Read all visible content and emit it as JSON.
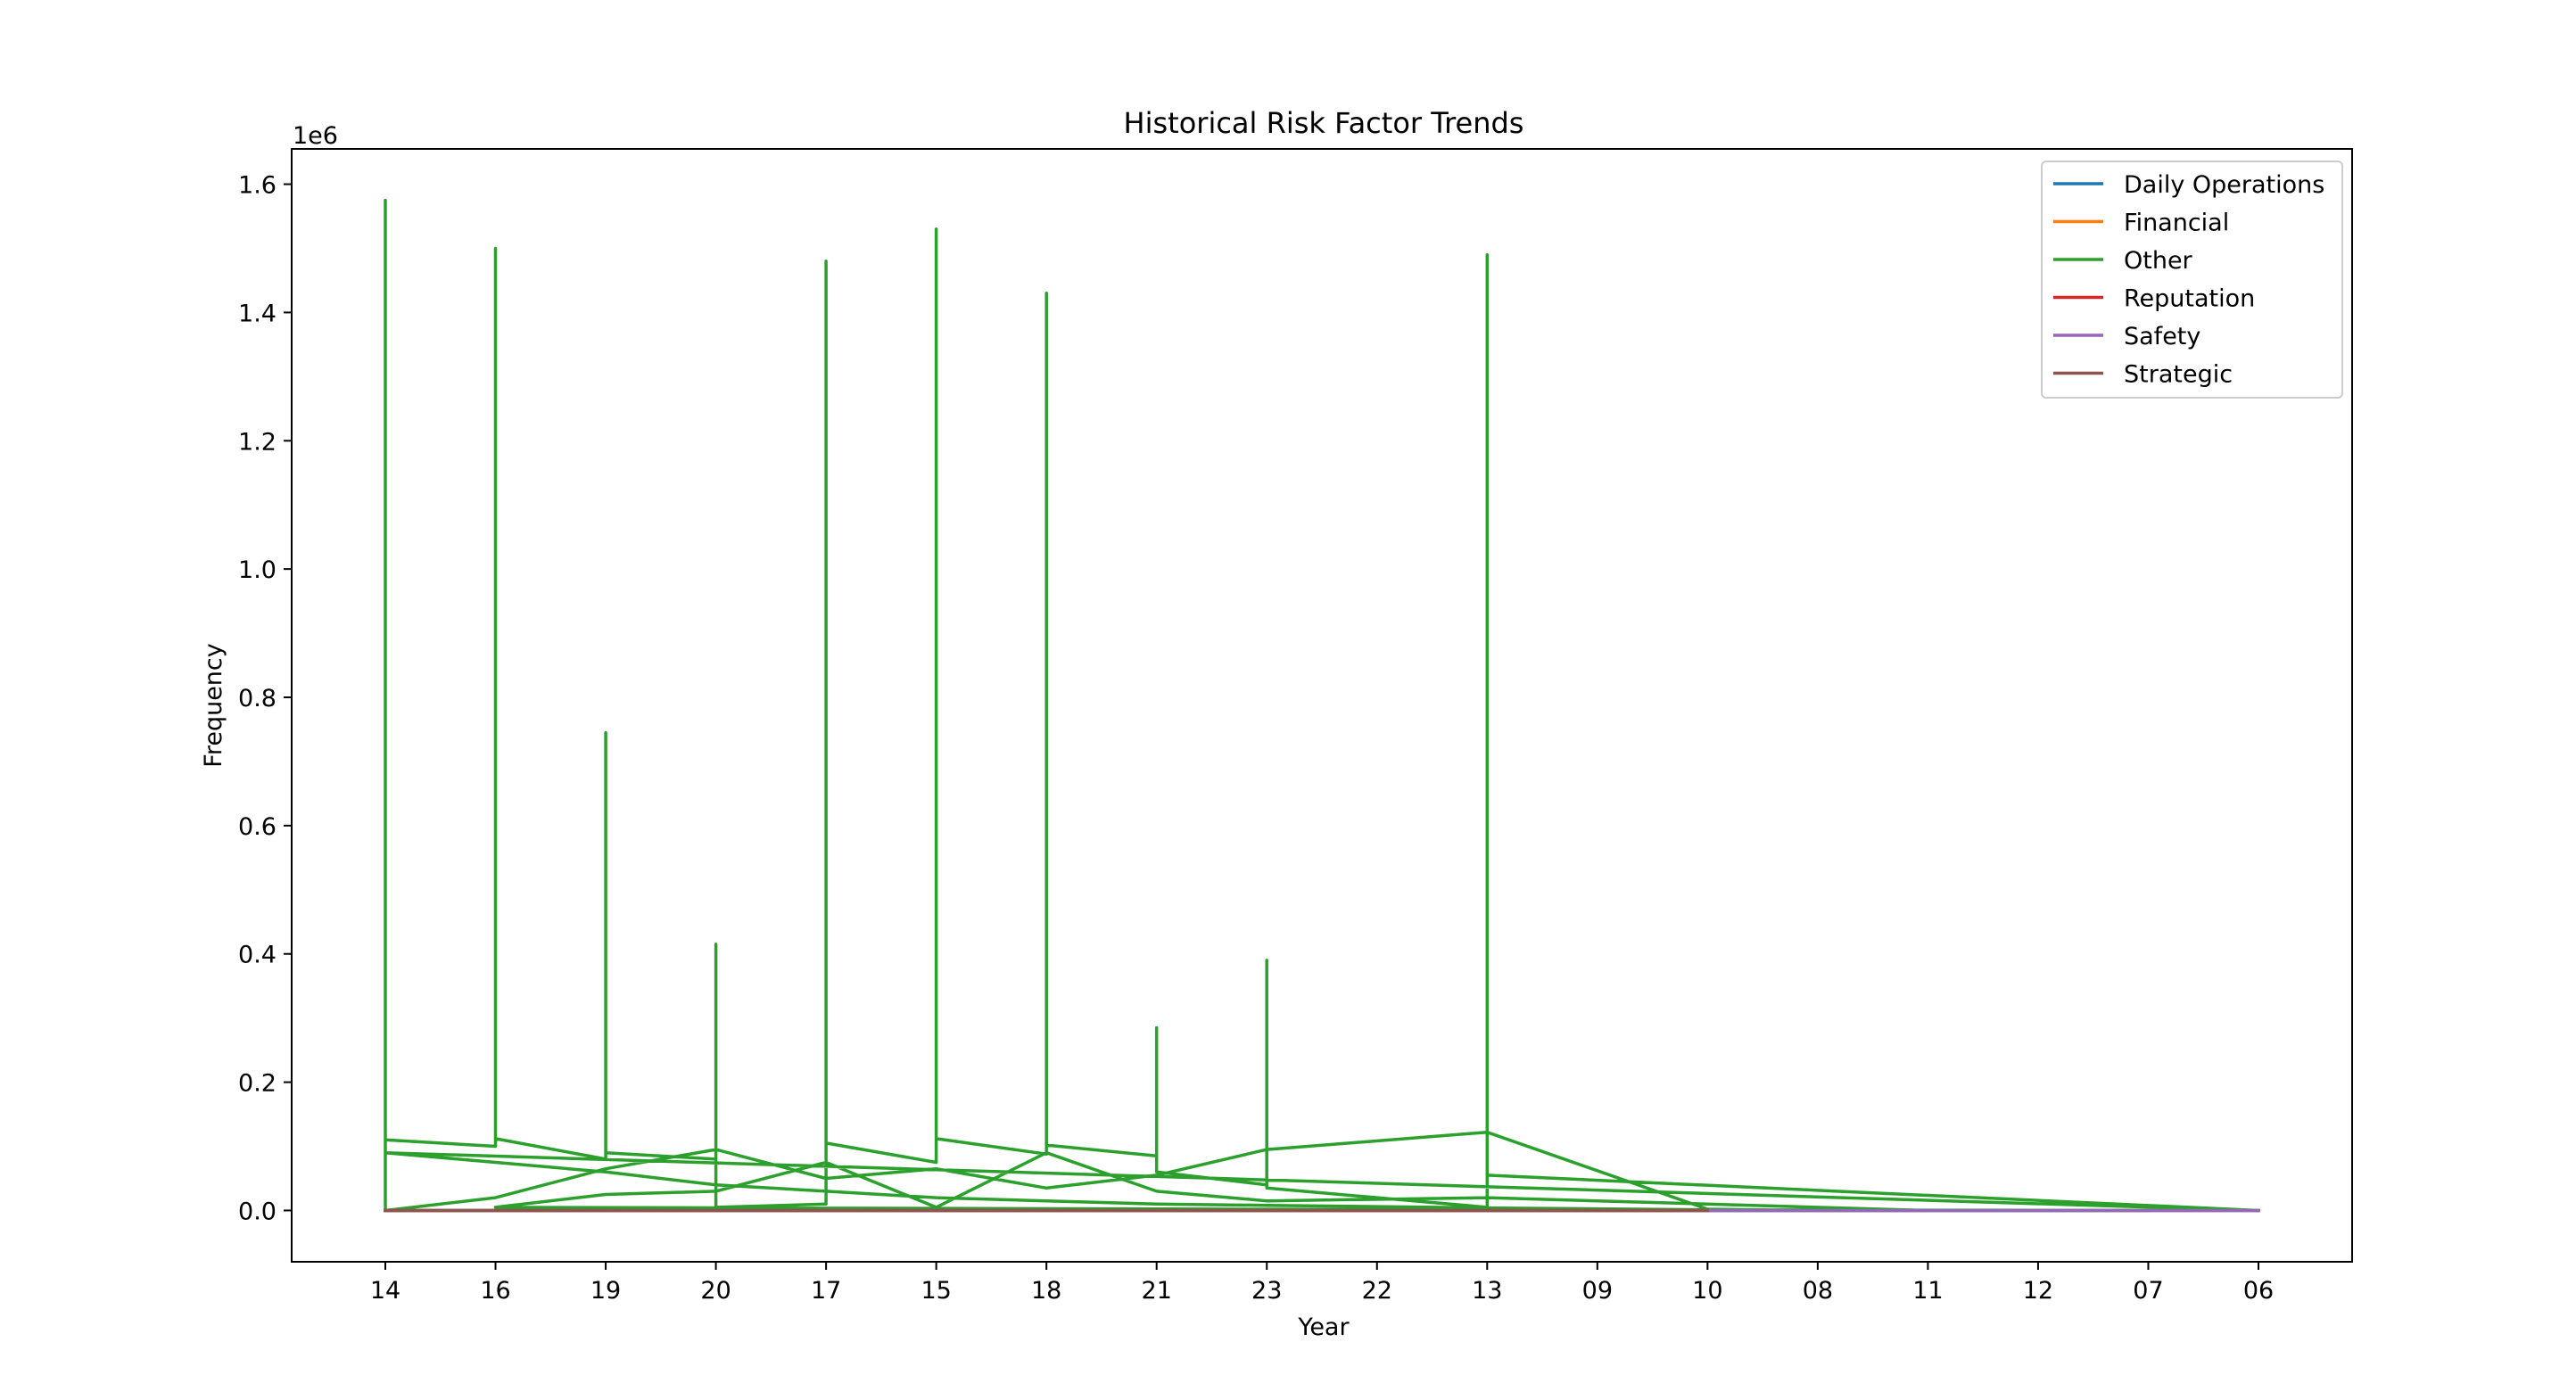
{
  "chart_data": {
    "type": "line",
    "title": "Historical Risk Factor Trends",
    "xlabel": "Year",
    "ylabel": "Frequency",
    "y_offset_text": "1e6",
    "categories": [
      "14",
      "16",
      "19",
      "20",
      "17",
      "15",
      "18",
      "21",
      "23",
      "22",
      "13",
      "09",
      "10",
      "08",
      "11",
      "12",
      "07",
      "06"
    ],
    "y_ticks": [
      0.0,
      0.2,
      0.4,
      0.6,
      0.8,
      1.0,
      1.2,
      1.4,
      1.6
    ],
    "y_tick_labels": [
      "0.0",
      "0.2",
      "0.4",
      "0.6",
      "0.8",
      "1.0",
      "1.2",
      "1.4",
      "1.6"
    ],
    "ylim": [
      -80000,
      1655000
    ],
    "xlim": [
      -0.85,
      17.85
    ],
    "grid": false,
    "legend_position": "top-right",
    "series": [
      {
        "name": "Daily Operations",
        "color": "#1f77b4",
        "points": [
          [
            "14",
            0
          ],
          [
            "16",
            0
          ],
          [
            "19",
            0
          ],
          [
            "20",
            0
          ],
          [
            "17",
            0
          ],
          [
            "15",
            0
          ],
          [
            "18",
            0
          ],
          [
            "21",
            0
          ],
          [
            "23",
            0
          ],
          [
            "22",
            0
          ],
          [
            "13",
            0
          ],
          [
            "09",
            0
          ],
          [
            "10",
            0
          ],
          [
            "08",
            0
          ],
          [
            "11",
            0
          ],
          [
            "12",
            0
          ],
          [
            "07",
            0
          ],
          [
            "06",
            0
          ]
        ]
      },
      {
        "name": "Financial",
        "color": "#ff7f0e",
        "points": [
          [
            "14",
            0
          ],
          [
            "16",
            0
          ],
          [
            "19",
            0
          ],
          [
            "20",
            0
          ],
          [
            "17",
            0
          ],
          [
            "15",
            0
          ],
          [
            "18",
            0
          ],
          [
            "21",
            0
          ],
          [
            "23",
            0
          ],
          [
            "22",
            0
          ],
          [
            "13",
            0
          ],
          [
            "09",
            0
          ],
          [
            "10",
            0
          ],
          [
            "08",
            0
          ],
          [
            "11",
            0
          ],
          [
            "12",
            0
          ],
          [
            "07",
            0
          ],
          [
            "06",
            0
          ]
        ]
      },
      {
        "name": "Other",
        "color": "#2ca02c",
        "points": [
          [
            "14",
            0
          ],
          [
            "14",
            1575000
          ],
          [
            "14",
            110000
          ],
          [
            "16",
            100000
          ],
          [
            "16",
            1500000
          ],
          [
            "16",
            112000
          ],
          [
            "19",
            80000
          ],
          [
            "19",
            745000
          ],
          [
            "19",
            90000
          ],
          [
            "20",
            80000
          ],
          [
            "20",
            415000
          ],
          [
            "20",
            5000
          ],
          [
            "17",
            10000
          ],
          [
            "17",
            1480000
          ],
          [
            "17",
            105000
          ],
          [
            "15",
            75000
          ],
          [
            "15",
            1530000
          ],
          [
            "15",
            112000
          ],
          [
            "18",
            88000
          ],
          [
            "18",
            1430000
          ],
          [
            "18",
            102000
          ],
          [
            "21",
            85000
          ],
          [
            "21",
            285000
          ],
          [
            "21",
            60000
          ],
          [
            "23",
            40000
          ],
          [
            "23",
            390000
          ],
          [
            "23",
            35000
          ],
          [
            "13",
            5000
          ],
          [
            "13",
            1490000
          ],
          [
            "13",
            55000
          ],
          [
            "06",
            0
          ],
          [
            "14",
            90000
          ],
          [
            "16",
            75000
          ],
          [
            "19",
            60000
          ],
          [
            "20",
            40000
          ],
          [
            "17",
            30000
          ],
          [
            "15",
            20000
          ],
          [
            "18",
            15000
          ],
          [
            "21",
            10000
          ],
          [
            "23",
            8000
          ],
          [
            "13",
            4000
          ],
          [
            "10",
            1000
          ],
          [
            "07",
            0
          ],
          [
            "14",
            0
          ],
          [
            "16",
            20000
          ],
          [
            "19",
            65000
          ],
          [
            "20",
            95000
          ],
          [
            "17",
            50000
          ],
          [
            "15",
            65000
          ],
          [
            "18",
            35000
          ],
          [
            "21",
            55000
          ],
          [
            "23",
            95000
          ],
          [
            "13",
            122000
          ],
          [
            "10",
            2000
          ],
          [
            "08",
            0
          ],
          [
            "16",
            5000
          ],
          [
            "19",
            25000
          ],
          [
            "20",
            30000
          ],
          [
            "17",
            75000
          ],
          [
            "15",
            5000
          ],
          [
            "18",
            90000
          ],
          [
            "21",
            30000
          ],
          [
            "23",
            15000
          ],
          [
            "13",
            20000
          ],
          [
            "11",
            0
          ]
        ]
      },
      {
        "name": "Reputation",
        "color": "#d62728",
        "points": [
          [
            "14",
            0
          ],
          [
            "16",
            0
          ],
          [
            "19",
            0
          ],
          [
            "20",
            0
          ],
          [
            "17",
            0
          ],
          [
            "15",
            0
          ],
          [
            "18",
            0
          ],
          [
            "21",
            0
          ],
          [
            "23",
            0
          ],
          [
            "22",
            0
          ],
          [
            "13",
            0
          ],
          [
            "09",
            0
          ],
          [
            "10",
            0
          ]
        ]
      },
      {
        "name": "Safety",
        "color": "#9467bd",
        "points": [
          [
            "14",
            0
          ],
          [
            "16",
            0
          ],
          [
            "19",
            0
          ],
          [
            "20",
            0
          ],
          [
            "17",
            0
          ],
          [
            "15",
            0
          ],
          [
            "18",
            0
          ],
          [
            "21",
            0
          ],
          [
            "23",
            0
          ],
          [
            "22",
            0
          ],
          [
            "13",
            0
          ],
          [
            "09",
            0
          ],
          [
            "10",
            0
          ],
          [
            "08",
            0
          ],
          [
            "11",
            0
          ],
          [
            "12",
            0
          ],
          [
            "07",
            0
          ],
          [
            "06",
            0
          ]
        ]
      },
      {
        "name": "Strategic",
        "color": "#8c564b",
        "points": [
          [
            "14",
            0
          ],
          [
            "16",
            0
          ],
          [
            "19",
            0
          ],
          [
            "20",
            0
          ],
          [
            "17",
            0
          ],
          [
            "15",
            0
          ],
          [
            "18",
            0
          ],
          [
            "21",
            0
          ],
          [
            "23",
            0
          ],
          [
            "22",
            0
          ],
          [
            "13",
            0
          ],
          [
            "09",
            0
          ],
          [
            "10",
            0
          ]
        ]
      }
    ]
  }
}
